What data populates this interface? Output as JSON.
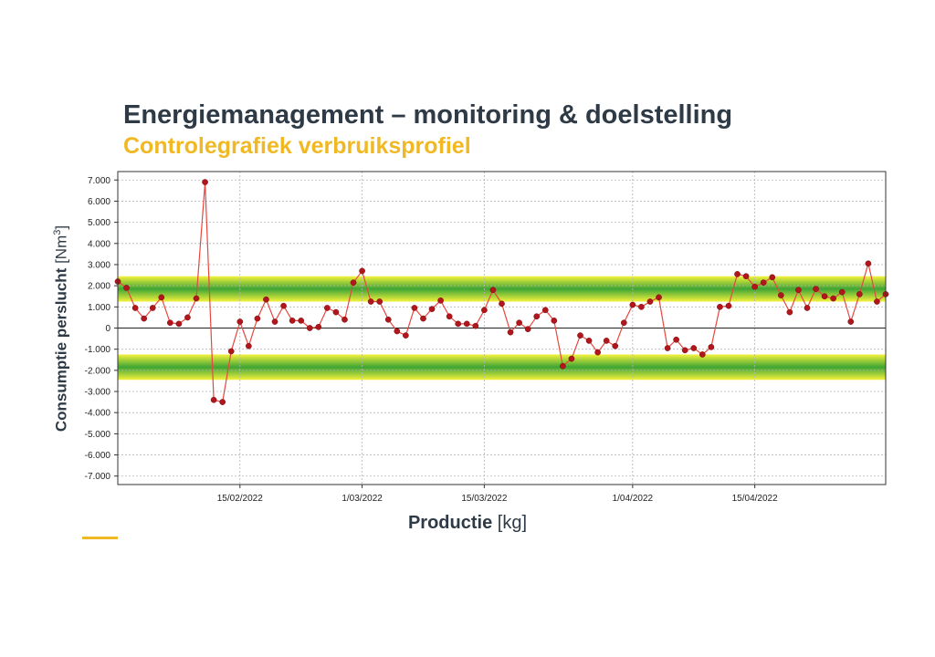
{
  "header": {
    "title": "Energiemanagement – monitoring & doelstelling",
    "subtitle": "Controlegrafiek verbruiksprofiel"
  },
  "colors": {
    "title": "#2e3a46",
    "subtitle": "#f0b823",
    "series": "#e8473f",
    "marker": "#b0161b",
    "band_center": "#3fa535",
    "band_edge": "#f4f23c"
  },
  "chart_data": {
    "type": "line",
    "xlabel_bold": "Productie",
    "xlabel_unit": "[kg]",
    "ylabel_bold": "Consumptie perslucht",
    "ylabel_unit": "[Nm",
    "ylabel_unit_sup": "3",
    "ylabel_unit_end": "]",
    "ylim": [
      -7400,
      7400
    ],
    "y_ticks": [
      {
        "value": 7000,
        "label": "7.000"
      },
      {
        "value": 6000,
        "label": "6.000"
      },
      {
        "value": 5000,
        "label": "5.000"
      },
      {
        "value": 4000,
        "label": "4.000"
      },
      {
        "value": 3000,
        "label": "3.000"
      },
      {
        "value": 2000,
        "label": "2.000"
      },
      {
        "value": 1000,
        "label": "1.000"
      },
      {
        "value": 0,
        "label": "0"
      },
      {
        "value": -1000,
        "label": "-1.000"
      },
      {
        "value": -2000,
        "label": "-2.000"
      },
      {
        "value": -3000,
        "label": "-3.000"
      },
      {
        "value": -4000,
        "label": "-4.000"
      },
      {
        "value": -5000,
        "label": "-5.000"
      },
      {
        "value": -6000,
        "label": "-6.000"
      },
      {
        "value": -7000,
        "label": "-7.000"
      }
    ],
    "x_ticks": [
      {
        "index": 14,
        "label": "15/02/2022"
      },
      {
        "index": 28,
        "label": "1/03/2022"
      },
      {
        "index": 42,
        "label": "15/03/2022"
      },
      {
        "index": 59,
        "label": "1/04/2022"
      },
      {
        "index": 73,
        "label": "15/04/2022"
      }
    ],
    "control_bands": [
      {
        "from": 1250,
        "to": 2450
      },
      {
        "from": -1250,
        "to": -2450
      }
    ],
    "zero_line": 0,
    "grid": true,
    "values": [
      2200,
      1900,
      950,
      450,
      950,
      1450,
      250,
      200,
      500,
      1400,
      6900,
      -3400,
      -3500,
      -1100,
      300,
      -850,
      450,
      1350,
      300,
      1050,
      350,
      350,
      0,
      50,
      950,
      750,
      400,
      2150,
      2700,
      1250,
      1250,
      400,
      -150,
      -350,
      950,
      450,
      900,
      1300,
      550,
      200,
      200,
      100,
      850,
      1800,
      1150,
      -200,
      250,
      -50,
      550,
      850,
      350,
      -1800,
      -1450,
      -350,
      -600,
      -1150,
      -600,
      -850,
      250,
      1100,
      1000,
      1250,
      1450,
      -950,
      -550,
      -1050,
      -950,
      -1250,
      -900,
      1000,
      1050,
      2550,
      2450,
      1950,
      2150,
      2400,
      1550,
      750,
      1800,
      950,
      1850,
      1500,
      1400,
      1700,
      300,
      1600,
      3050,
      1250,
      1600
    ]
  }
}
